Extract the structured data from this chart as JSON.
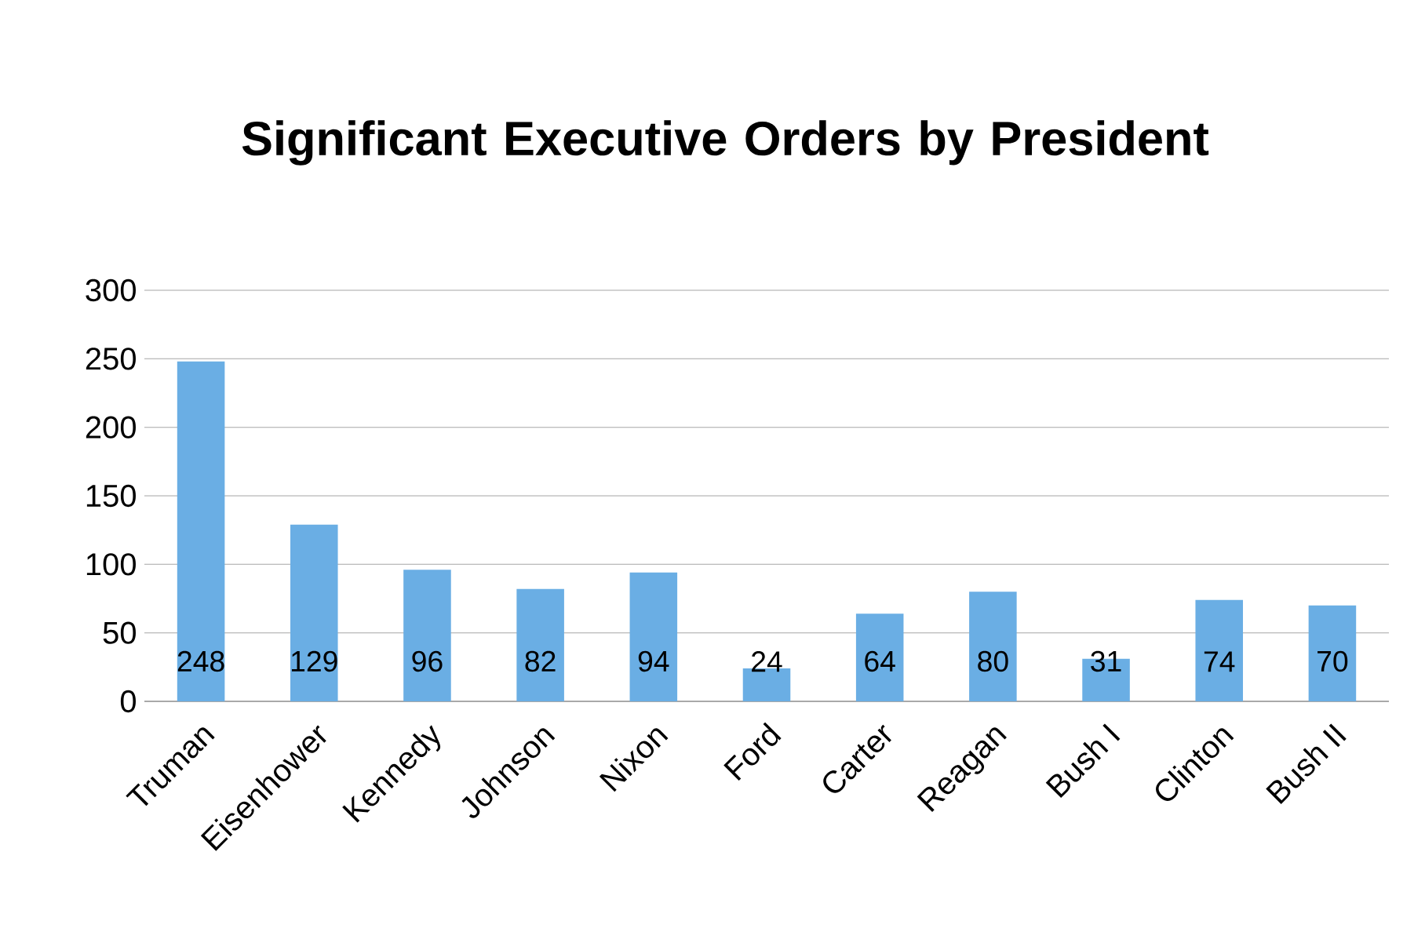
{
  "chart_data": {
    "type": "bar",
    "title": "Significant Executive Orders by President",
    "categories": [
      "Truman",
      "Eisenhower",
      "Kennedy",
      "Johnson",
      "Nixon",
      "Ford",
      "Carter",
      "Reagan",
      "Bush I",
      "Clinton",
      "Bush II"
    ],
    "values": [
      248,
      129,
      96,
      82,
      94,
      24,
      64,
      80,
      31,
      74,
      70
    ],
    "color": "#6aaee4",
    "ylim": [
      0,
      300
    ],
    "yticks": [
      0,
      50,
      100,
      150,
      200,
      250,
      300
    ],
    "grid": "y",
    "data_labels": true
  }
}
